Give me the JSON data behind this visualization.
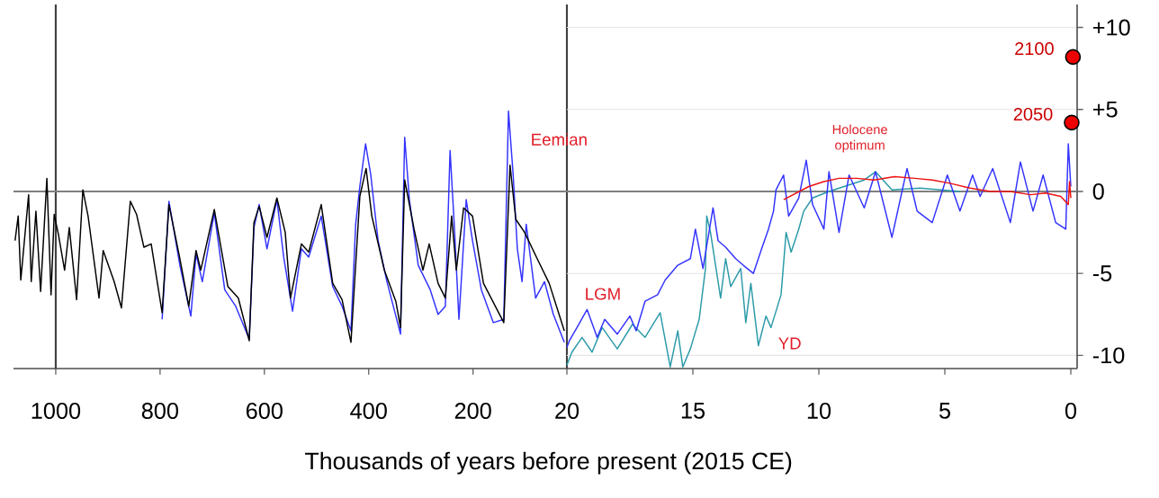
{
  "chart_data": [
    {
      "type": "line",
      "xlabel": "Thousands of years before present (2015 CE)",
      "xlim": [
        1081,
        20
      ],
      "ylim": [
        -10.8,
        11.4
      ],
      "xticks": [
        1000,
        800,
        600,
        400,
        200
      ],
      "yticks": [
        10,
        5,
        0,
        -5,
        -10
      ],
      "tick_labels": "x",
      "grid": "y",
      "ref_lines": [
        {
          "axis": "x",
          "value": 1000,
          "color": "#404040"
        },
        {
          "axis": "x",
          "value": 20,
          "color": "#404040"
        },
        {
          "axis": "y",
          "value": 0,
          "color": "#808080"
        }
      ],
      "annotations": [
        "Eemian"
      ],
      "series": [
        {
          "color": "#3333ff",
          "x": [
            796,
            783,
            762,
            741,
            731,
            719,
            696,
            676,
            655,
            629,
            620,
            610,
            595,
            576,
            563,
            546,
            529,
            515,
            491,
            469,
            451,
            434,
            425,
            417,
            406,
            396,
            382,
            365,
            339,
            331,
            322,
            305,
            282,
            267,
            253,
            244,
            236,
            227,
            213,
            201,
            184,
            161,
            141,
            132,
            123,
            115,
            106,
            98,
            80,
            63,
            46,
            25
          ],
          "values": [
            -7.8,
            -0.6,
            -4.5,
            -7.6,
            -3.8,
            -5.5,
            -1.3,
            -6.0,
            -7.0,
            -9.0,
            -2.2,
            -0.8,
            -3.5,
            -0.5,
            -4.0,
            -7.3,
            -3.5,
            -4.0,
            -1.5,
            -5.8,
            -7.0,
            -8.5,
            -2.0,
            0.3,
            2.9,
            1.0,
            -3.0,
            -5.5,
            -8.7,
            3.3,
            -0.5,
            -4.5,
            -6.0,
            -7.5,
            -7.0,
            2.5,
            -2.0,
            -7.8,
            -0.5,
            -3.0,
            -6.0,
            -8.0,
            -7.8,
            4.9,
            1.0,
            -3.5,
            -5.5,
            -2.0,
            -6.5,
            -5.5,
            -7.5,
            -9.2
          ]
        },
        {
          "color": "#000000",
          "x": [
            1078,
            1072,
            1067,
            1052,
            1047,
            1038,
            1029,
            1017,
            1009,
            1003,
            995,
            983,
            974,
            960,
            948,
            938,
            917,
            909,
            888,
            874,
            857,
            845,
            831,
            817,
            796,
            783,
            762,
            745,
            731,
            722,
            696,
            670,
            650,
            629,
            620,
            610,
            595,
            576,
            560,
            550,
            529,
            515,
            491,
            469,
            451,
            434,
            417,
            405,
            394,
            370,
            348,
            339,
            331,
            313,
            296,
            284,
            267,
            253,
            241,
            232,
            218,
            201,
            180,
            141,
            129,
            118,
            101,
            77,
            54,
            25
          ],
          "values": [
            -3.0,
            -1.5,
            -5.4,
            -0.2,
            -5.5,
            -1.2,
            -6.1,
            0.8,
            -6.3,
            -1.4,
            -2.6,
            -4.8,
            -2.2,
            -6.6,
            0.1,
            -1.5,
            -6.5,
            -3.6,
            -5.5,
            -7.1,
            -0.6,
            -1.4,
            -3.4,
            -3.2,
            -7.4,
            -0.8,
            -4.1,
            -7.0,
            -3.6,
            -4.8,
            -1.1,
            -5.8,
            -6.5,
            -9.1,
            -1.9,
            -0.9,
            -2.8,
            -0.4,
            -2.5,
            -6.5,
            -3.2,
            -3.7,
            -0.8,
            -5.6,
            -6.6,
            -9.2,
            -0.3,
            1.4,
            -1.5,
            -4.8,
            -6.7,
            -8.3,
            0.7,
            -2.3,
            -4.8,
            -3.2,
            -5.6,
            -6.5,
            -1.5,
            -4.8,
            -1.0,
            -1.5,
            -5.6,
            -8.0,
            1.6,
            -1.7,
            -2.5,
            -4.1,
            -5.6,
            -8.5
          ]
        }
      ]
    },
    {
      "type": "line",
      "xlim": [
        20,
        -0.25
      ],
      "ylim": [
        -10.8,
        11.4
      ],
      "xticks": [
        20,
        15,
        10,
        5,
        0
      ],
      "yticks": [
        {
          "value": 10,
          "label": "+10"
        },
        {
          "value": 5,
          "label": "+5"
        },
        0,
        -5,
        -10
      ],
      "grid": "y",
      "ref_lines": [
        {
          "axis": "y",
          "value": 0,
          "color": "#808080"
        }
      ],
      "annotations": [
        "LGM",
        "YD",
        "Holocene optimum"
      ],
      "series": [
        {
          "color": "#2b9aa8",
          "x": [
            20.0,
            19.8,
            19.4,
            19.0,
            18.6,
            18.0,
            17.4,
            16.9,
            16.3,
            15.9,
            15.6,
            15.4,
            15.1,
            14.75,
            14.5,
            14.45,
            14.3,
            13.9,
            13.7,
            13.5,
            13.1,
            12.9,
            12.7,
            12.4,
            12.1,
            11.9,
            11.5,
            11.3,
            11.1,
            10.8,
            10.6,
            10.25,
            9.6,
            9.0,
            8.2,
            7.75,
            7.1,
            6.0,
            4.4
          ],
          "values": [
            -10.6,
            -9.8,
            -8.9,
            -9.8,
            -8.3,
            -9.6,
            -8.1,
            -8.9,
            -7.4,
            -10.7,
            -8.5,
            -10.7,
            -9.6,
            -7.8,
            -4.7,
            -1.5,
            -2.5,
            -6.5,
            -4.1,
            -5.8,
            -4.7,
            -8.0,
            -5.6,
            -9.4,
            -7.6,
            -8.3,
            -6.3,
            -2.5,
            -3.7,
            -2.3,
            -1.2,
            -0.4,
            0.0,
            0.3,
            0.7,
            1.2,
            0.1,
            0.2,
            0.0
          ]
        },
        {
          "color": "#3333ff",
          "x": [
            20.0,
            19.9,
            19.6,
            19.2,
            18.8,
            18.5,
            18.0,
            17.5,
            17.25,
            16.9,
            16.4,
            16.1,
            15.6,
            15.1,
            14.9,
            14.6,
            14.2,
            14.0,
            13.7,
            13.3,
            13.0,
            12.6,
            12.25,
            12.0,
            11.8,
            11.7,
            11.4,
            11.2,
            10.8,
            10.5,
            10.25,
            9.8,
            9.6,
            9.2,
            8.8,
            8.2,
            7.75,
            7.1,
            6.5,
            6.1,
            5.5,
            4.9,
            4.4,
            3.9,
            3.6,
            3.1,
            2.4,
            2.0,
            1.5,
            1.1,
            0.6,
            0.2,
            0.1,
            0.0
          ],
          "values": [
            -9.5,
            -9.1,
            -8.3,
            -7.2,
            -8.9,
            -7.8,
            -8.7,
            -7.6,
            -8.5,
            -6.7,
            -6.3,
            -5.4,
            -4.5,
            -4.1,
            -2.3,
            -4.7,
            -1.0,
            -3.0,
            -3.4,
            -4.1,
            -4.5,
            -5.0,
            -3.4,
            -2.3,
            -1.2,
            0.1,
            1.0,
            -1.5,
            -0.4,
            1.9,
            -0.8,
            -2.3,
            1.2,
            -2.5,
            1.0,
            -1.0,
            1.2,
            -2.8,
            1.4,
            -1.2,
            -1.9,
            1.0,
            -1.2,
            1.0,
            -0.3,
            1.4,
            -1.9,
            1.8,
            -1.2,
            1.0,
            -1.9,
            -2.3,
            2.9,
            0.3
          ]
        },
        {
          "color": "#ee1111",
          "x": [
            11.4,
            10.9,
            10.4,
            9.8,
            9.2,
            8.5,
            7.8,
            7.0,
            6.2,
            5.5,
            4.8,
            4.0,
            3.2,
            2.4,
            1.6,
            1.0,
            0.4,
            0.1,
            0.05,
            0.0
          ],
          "values": [
            -0.5,
            -0.1,
            0.3,
            0.6,
            0.8,
            0.8,
            0.7,
            0.9,
            0.8,
            0.7,
            0.5,
            0.2,
            0.0,
            0.0,
            -0.2,
            -0.1,
            -0.3,
            -0.8,
            0.6,
            -0.4
          ]
        },
        {
          "type": "scatter",
          "name": "2100",
          "marker": "circle",
          "color": "#ee0000",
          "x": [
            -0.085
          ],
          "values": [
            8.2
          ]
        },
        {
          "type": "scatter",
          "name": "2050",
          "marker": "circle",
          "color": "#ee0000",
          "x": [
            -0.035
          ],
          "values": [
            4.2
          ]
        }
      ]
    }
  ]
}
